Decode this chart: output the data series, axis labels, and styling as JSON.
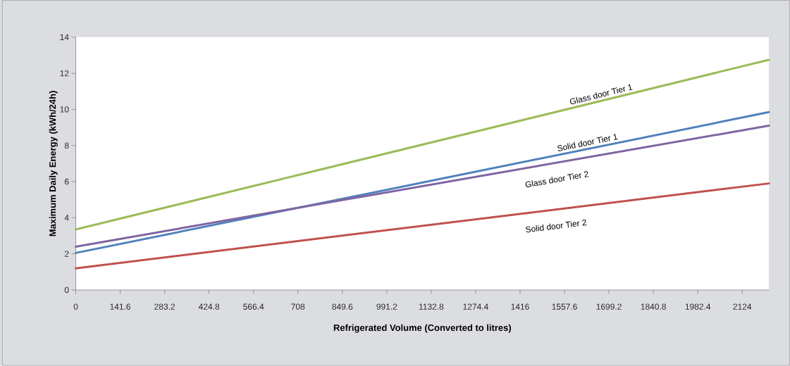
{
  "chart_data": {
    "type": "line",
    "xlabel": "Refrigerated Volume (Converted to litres)",
    "ylabel": "Maximum Daily Energy (kWh/24h)",
    "xlim": [
      0,
      2209
    ],
    "ylim": [
      0,
      14
    ],
    "xticks": [
      0,
      141.6,
      283.2,
      424.8,
      566.4,
      708,
      849.6,
      991.2,
      1132.8,
      1274.4,
      1416,
      1557.6,
      1699.2,
      1840.8,
      1982.4,
      2124
    ],
    "yticks": [
      0,
      2,
      4,
      6,
      8,
      10,
      12,
      14
    ],
    "x": [
      0,
      2209
    ],
    "grid": false,
    "legend": false,
    "marker": "none",
    "line_style": "solid",
    "series": [
      {
        "name": "Glass door Tier 1",
        "color": "#9bbb59",
        "values": [
          3.35,
          12.75
        ]
      },
      {
        "name": "Solid door Tier 1",
        "color": "#4f81bd",
        "values": [
          2.05,
          9.85
        ]
      },
      {
        "name": "Glass door Tier 2",
        "color": "#8064a2",
        "values": [
          2.4,
          9.1
        ]
      },
      {
        "name": "Solid door Tier 2",
        "color": "#c0504d",
        "values": [
          1.2,
          5.9
        ]
      }
    ]
  }
}
